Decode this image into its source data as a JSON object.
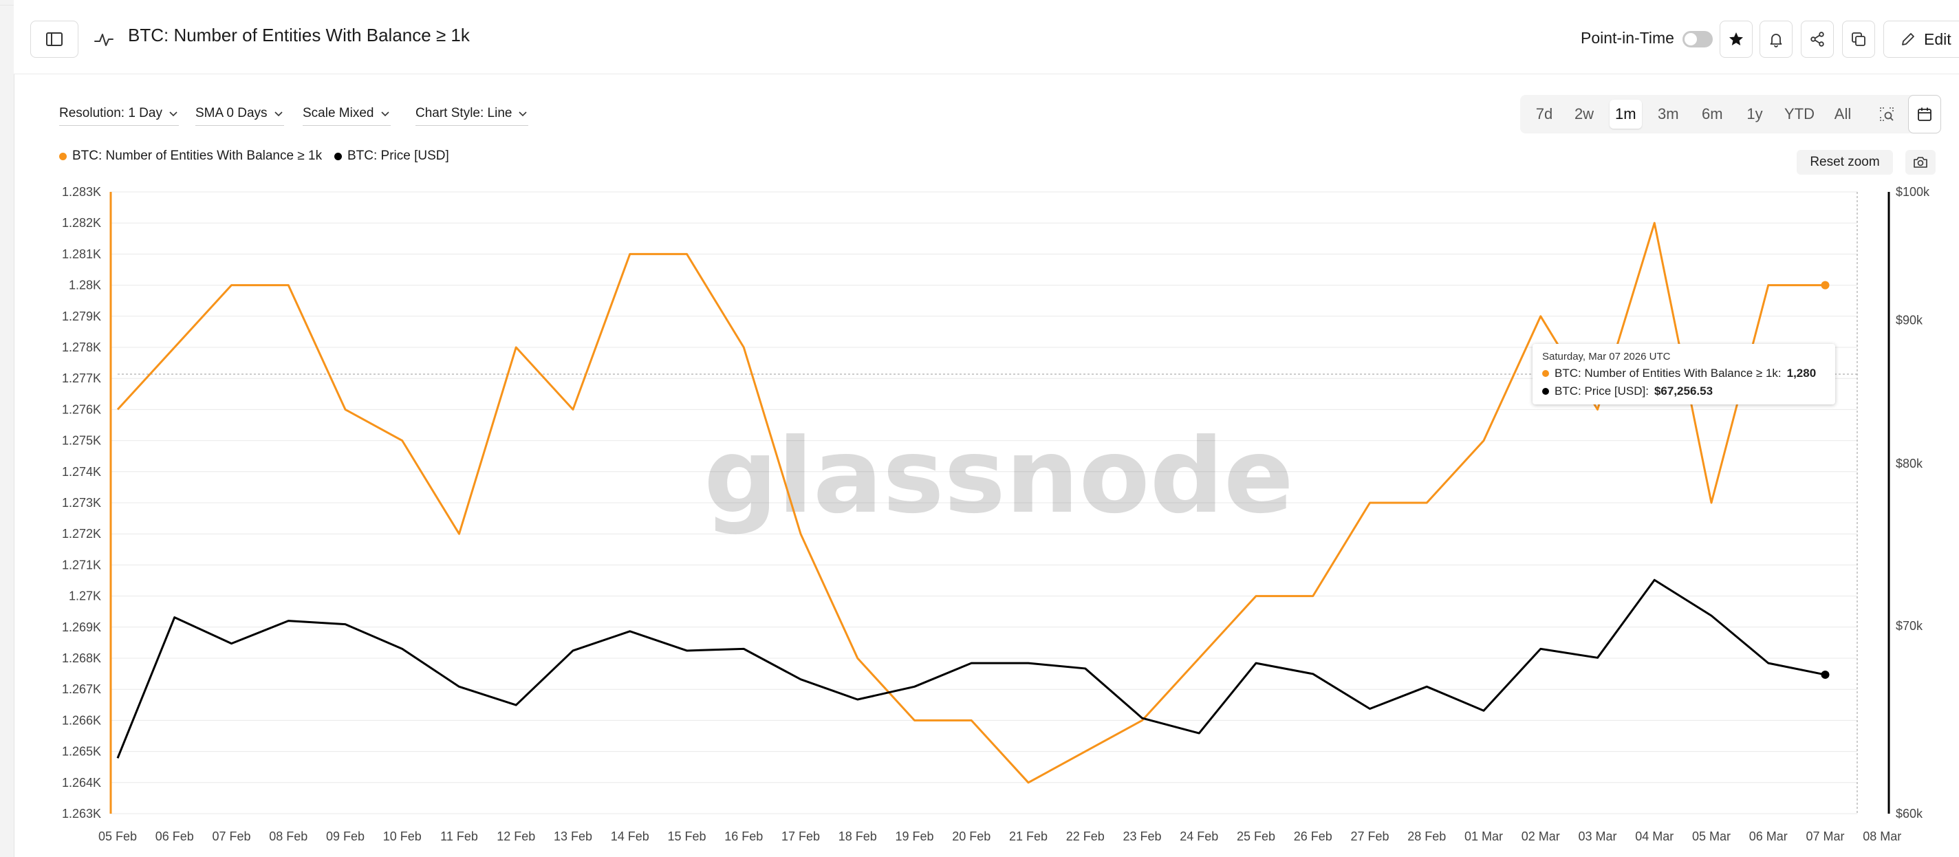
{
  "header": {
    "title": "BTC: Number of Entities With Balance ≥ 1k",
    "point_in_time_label": "Point-in-Time",
    "edit_label": "Edit"
  },
  "controls": {
    "resolution": "Resolution: 1 Day",
    "sma": "SMA 0 Days",
    "scale": "Scale Mixed",
    "chart_style": "Chart Style: Line"
  },
  "ranges": [
    {
      "label": "7d",
      "active": false
    },
    {
      "label": "2w",
      "active": false
    },
    {
      "label": "1m",
      "active": true
    },
    {
      "label": "3m",
      "active": false
    },
    {
      "label": "6m",
      "active": false
    },
    {
      "label": "1y",
      "active": false
    },
    {
      "label": "YTD",
      "active": false
    },
    {
      "label": "All",
      "active": false
    }
  ],
  "reset_zoom_label": "Reset zoom",
  "watermark": "glassnode",
  "tooltip": {
    "date": "Saturday, Mar 07 2026 UTC",
    "series1_label": "BTC: Number of Entities With Balance ≥ 1k:",
    "series1_value": "1,280",
    "series2_label": "BTC: Price [USD]:",
    "series2_value": "$67,256.53"
  },
  "colors": {
    "entities": "#f7931a",
    "price": "#000000",
    "grid": "#e9e9e9"
  },
  "chart_data": {
    "type": "line",
    "x": [
      "05 Feb",
      "06 Feb",
      "07 Feb",
      "08 Feb",
      "09 Feb",
      "10 Feb",
      "11 Feb",
      "12 Feb",
      "13 Feb",
      "14 Feb",
      "15 Feb",
      "16 Feb",
      "17 Feb",
      "18 Feb",
      "19 Feb",
      "20 Feb",
      "21 Feb",
      "22 Feb",
      "23 Feb",
      "24 Feb",
      "25 Feb",
      "26 Feb",
      "27 Feb",
      "28 Feb",
      "01 Mar",
      "02 Mar",
      "03 Mar",
      "04 Mar",
      "05 Mar",
      "06 Mar",
      "07 Mar"
    ],
    "x_ticks": [
      "05 Feb",
      "06 Feb",
      "07 Feb",
      "08 Feb",
      "09 Feb",
      "10 Feb",
      "11 Feb",
      "12 Feb",
      "13 Feb",
      "14 Feb",
      "15 Feb",
      "16 Feb",
      "17 Feb",
      "18 Feb",
      "19 Feb",
      "20 Feb",
      "21 Feb",
      "22 Feb",
      "23 Feb",
      "24 Feb",
      "25 Feb",
      "26 Feb",
      "27 Feb",
      "28 Feb",
      "01 Mar",
      "02 Mar",
      "03 Mar",
      "04 Mar",
      "05 Mar",
      "06 Mar",
      "07 Mar",
      "08 Mar"
    ],
    "series": [
      {
        "name": "BTC: Number of Entities With Balance ≥ 1k",
        "axis": "left",
        "values": [
          1276,
          1278,
          1280,
          1280,
          1276,
          1275,
          1272,
          1278,
          1276,
          1281,
          1281,
          1278,
          1272,
          1268,
          1266,
          1266,
          1264,
          1265,
          1266,
          1268,
          1270,
          1270,
          1273,
          1273,
          1275,
          1279,
          1276,
          1282,
          1273,
          1280,
          1280
        ]
      },
      {
        "name": "BTC: Price [USD]",
        "axis": "right",
        "values": [
          62800,
          70500,
          69000,
          70300,
          70100,
          68700,
          66600,
          65600,
          68600,
          69700,
          68600,
          68700,
          67000,
          65900,
          66600,
          67900,
          67900,
          67600,
          64900,
          64100,
          67900,
          67300,
          65400,
          66600,
          65300,
          68700,
          68200,
          72700,
          70600,
          67900,
          67257
        ]
      }
    ],
    "y_left": {
      "ticks": [
        "1.263K",
        "1.264K",
        "1.265K",
        "1.266K",
        "1.267K",
        "1.268K",
        "1.269K",
        "1.27K",
        "1.271K",
        "1.272K",
        "1.273K",
        "1.274K",
        "1.275K",
        "1.276K",
        "1.277K",
        "1.278K",
        "1.279K",
        "1.28K",
        "1.281K",
        "1.282K",
        "1.283K"
      ],
      "range": [
        1263,
        1283
      ]
    },
    "y_right": {
      "scale": "log",
      "ticks": [
        "$60k",
        "$70k",
        "$80k",
        "$90k",
        "$100k"
      ],
      "range": [
        60000,
        100000
      ]
    },
    "grid": true,
    "legend_position": "top-left"
  }
}
